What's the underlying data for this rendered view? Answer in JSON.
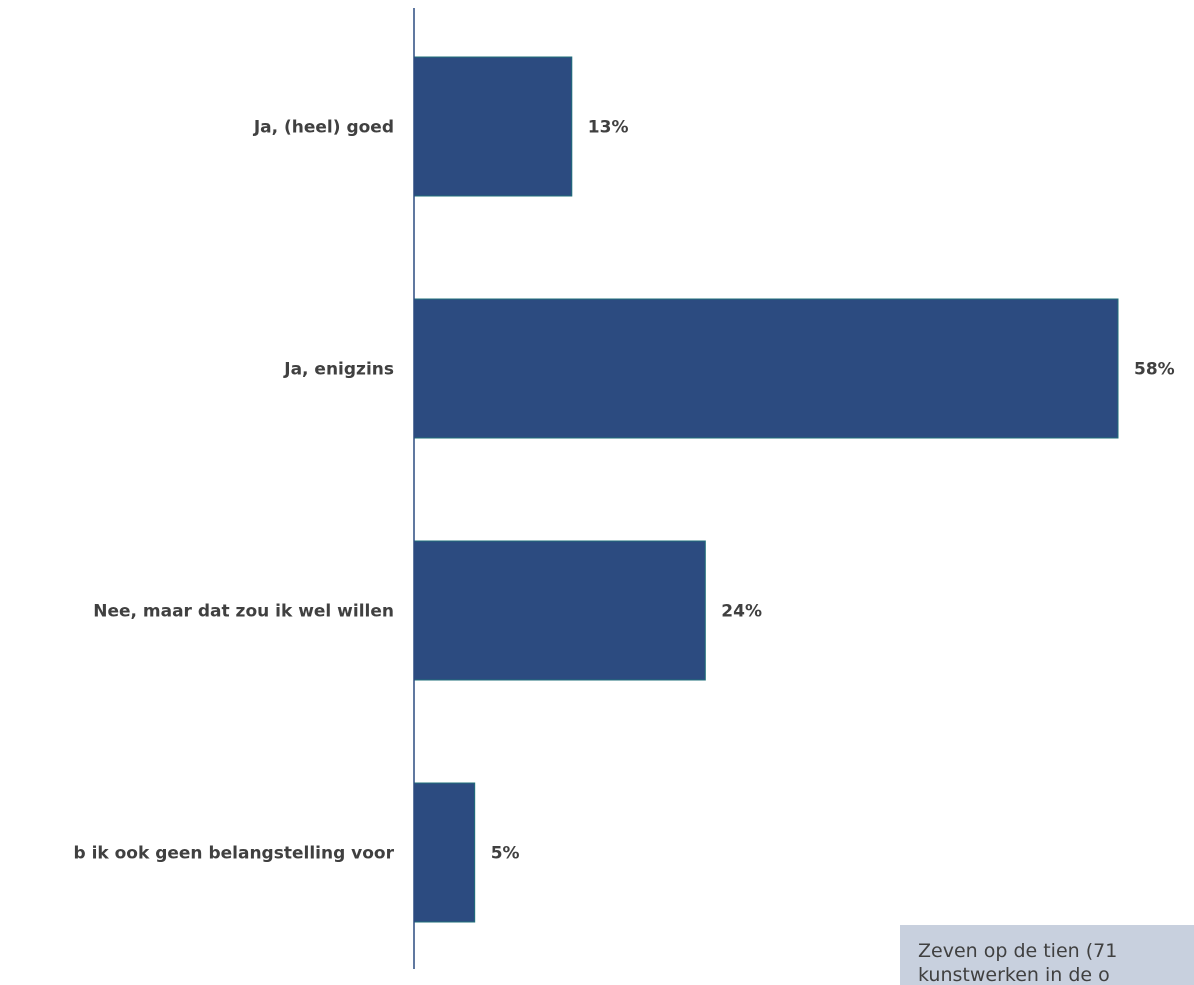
{
  "chart_data": {
    "type": "bar",
    "orientation": "horizontal",
    "categories": [
      "Ja, (heel) goed",
      "Ja, enigzins",
      "Nee, maar dat zou ik wel willen",
      "b ik ook geen belangstelling voor"
    ],
    "values": [
      13,
      58,
      24,
      5
    ],
    "value_labels": [
      "13%",
      "58%",
      "24%",
      "5%"
    ],
    "xlim": [
      0,
      100
    ],
    "grid": false,
    "legend": "none",
    "colors": {
      "bar": "#2c4b80",
      "bar_edge": "#1f6f7a",
      "axis": "#2c4b80",
      "text": "#404040",
      "note_bg": "#c8d0de"
    }
  },
  "note": {
    "line1": "Zeven op de tien (71",
    "line2": "kunstwerken in de o"
  }
}
